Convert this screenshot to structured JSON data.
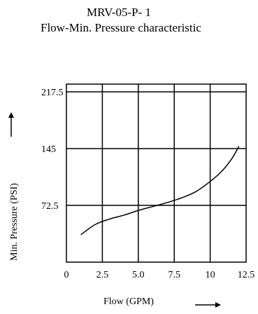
{
  "title": "MRV-05-P- 1",
  "subtitle": "Flow-Min. Pressure characteristic",
  "chart_data": {
    "type": "line",
    "xlabel": "Flow (GPM)",
    "ylabel": "Min. Pressure (PSI)",
    "x_ticks": [
      "0",
      "2.5",
      "5.0",
      "7.5",
      "10",
      "12.5"
    ],
    "y_ticks": [
      "72.5",
      "145",
      "217.5"
    ],
    "xlim": [
      0,
      12.5
    ],
    "ylim": [
      0,
      217.5
    ],
    "grid": true,
    "series": [
      {
        "x": [
          1.0,
          2.0,
          3.0,
          4.0,
          5.0,
          6.0,
          7.0,
          8.0,
          9.0,
          10.0,
          10.8,
          11.5,
          12.0
        ],
        "y": [
          35,
          48,
          55,
          60,
          66,
          71,
          76,
          82,
          90,
          103,
          116,
          132,
          148
        ]
      }
    ]
  }
}
